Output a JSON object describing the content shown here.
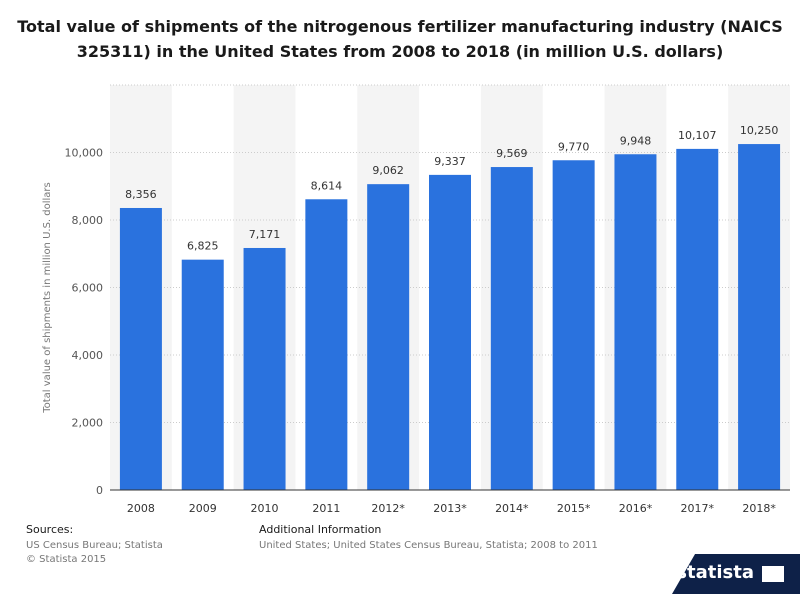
{
  "title": "Total value of shipments of the nitrogenous fertilizer manufacturing industry (NAICS 325311) in the United States from 2008 to 2018 (in million U.S. dollars)",
  "colors": {
    "bar": "#2a72de",
    "band": "#f4f4f4",
    "grid": "#cccccc",
    "axis": "#333333",
    "logo": "#0e2148"
  },
  "chart_data": {
    "type": "bar",
    "title": "Total value of shipments of the nitrogenous fertilizer manufacturing industry (NAICS 325311) in the United States from 2008 to 2018 (in million U.S. dollars)",
    "categories": [
      "2008",
      "2009",
      "2010",
      "2011",
      "2012*",
      "2013*",
      "2014*",
      "2015*",
      "2016*",
      "2017*",
      "2018*"
    ],
    "values": [
      8356,
      6825,
      7171,
      8614,
      9062,
      9337,
      9569,
      9770,
      9948,
      10107,
      10250
    ],
    "value_labels": [
      "8,356",
      "6,825",
      "7,171",
      "8,614",
      "9,062",
      "9,337",
      "9,569",
      "9,770",
      "9,948",
      "10,107",
      "10,250"
    ],
    "xlabel": "",
    "ylabel": "Total value of shipments in million U.S. dollars",
    "ylim": [
      0,
      12000
    ],
    "yticks": [
      0,
      2000,
      4000,
      6000,
      8000,
      10000
    ],
    "ytick_labels": [
      "0",
      "2,000",
      "4,000",
      "6,000",
      "8,000",
      "10,000"
    ],
    "grid": true,
    "legend": false
  },
  "footer": {
    "sources_label": "Sources:",
    "sources_line1": "US Census Bureau; Statista",
    "sources_line2": "© Statista 2015",
    "info_label": "Additional Information",
    "info_text": "United States; United States Census Bureau, Statista; 2008 to 2011"
  },
  "logo": {
    "text": "statista",
    "icon": "statista-logo-icon"
  }
}
